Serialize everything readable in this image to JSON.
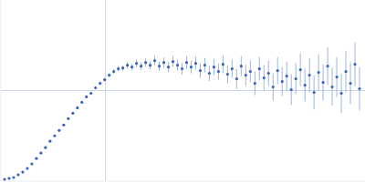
{
  "chart_data": {
    "type": "scatter",
    "color": "#3a64c0",
    "marker": "circle",
    "tick_labels": false,
    "grid": false,
    "xlim": [
      0,
      400
    ],
    "ylim": [
      0,
      200
    ],
    "reference_lines": {
      "x": [
        115
      ],
      "y": [
        100
      ]
    },
    "x": [
      4,
      9,
      14,
      19,
      24,
      29,
      34,
      39,
      44,
      49,
      54,
      59,
      64,
      69,
      74,
      79,
      84,
      89,
      94,
      99,
      104,
      109,
      114,
      119,
      124,
      129,
      134,
      139,
      144,
      149,
      154,
      159,
      164,
      169,
      174,
      179,
      184,
      189,
      194,
      199,
      204,
      209,
      214,
      219,
      224,
      229,
      234,
      239,
      244,
      249,
      254,
      259,
      264,
      269,
      274,
      279,
      284,
      289,
      294,
      299,
      304,
      309,
      314,
      319,
      324,
      329,
      334,
      339,
      344,
      349,
      354,
      359,
      364,
      369,
      374,
      379,
      384,
      389,
      394
    ],
    "values": [
      2,
      3,
      4,
      7,
      10,
      14,
      19,
      25,
      31,
      37,
      44,
      50,
      56,
      62,
      69,
      75,
      81,
      87,
      93,
      97,
      103,
      108,
      112,
      117,
      121,
      124,
      125,
      128,
      126,
      130,
      127,
      131,
      128,
      133,
      127,
      131,
      126,
      132,
      128,
      124,
      131,
      126,
      130,
      122,
      128,
      119,
      126,
      121,
      129,
      118,
      124,
      113,
      127,
      117,
      121,
      108,
      124,
      114,
      119,
      104,
      122,
      110,
      116,
      101,
      113,
      123,
      106,
      117,
      98,
      120,
      109,
      127,
      104,
      115,
      97,
      121,
      108,
      129,
      102
    ],
    "errors": [
      0.5,
      0.5,
      0.5,
      0.5,
      0.5,
      0.5,
      0.5,
      0.5,
      0.6,
      0.6,
      0.6,
      0.7,
      0.7,
      0.8,
      0.8,
      0.9,
      1,
      1,
      1.2,
      1.3,
      1.5,
      1.8,
      2,
      2.2,
      2.5,
      3,
      3,
      3.5,
      3.5,
      4,
      4,
      4.5,
      4.5,
      5,
      5,
      5.5,
      5.5,
      6,
      6,
      6.5,
      7,
      7,
      7.5,
      8,
      8,
      8.5,
      9,
      9,
      10,
      10,
      10,
      11,
      11,
      12,
      12,
      13,
      13,
      14,
      14,
      15,
      15,
      16,
      16,
      17,
      17,
      18,
      18,
      19,
      19,
      20,
      20,
      21,
      21,
      22,
      22,
      23,
      23,
      24,
      24
    ]
  }
}
